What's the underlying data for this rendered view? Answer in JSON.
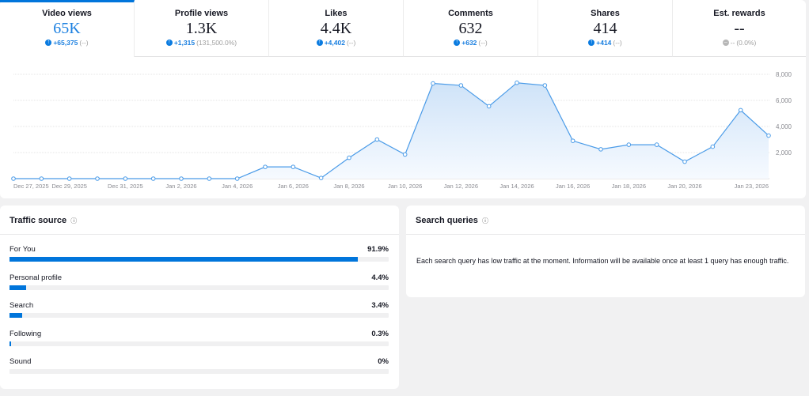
{
  "metrics": [
    {
      "label": "Video views",
      "value": "65K",
      "change": "+65,375",
      "pct": "(--)",
      "dir": "up"
    },
    {
      "label": "Profile views",
      "value": "1.3K",
      "change": "+1,315",
      "pct": "(131,500.0%)",
      "dir": "up"
    },
    {
      "label": "Likes",
      "value": "4.4K",
      "change": "+4,402",
      "pct": "(--)",
      "dir": "up"
    },
    {
      "label": "Comments",
      "value": "632",
      "change": "+632",
      "pct": "(--)",
      "dir": "up"
    },
    {
      "label": "Shares",
      "value": "414",
      "change": "+414",
      "pct": "(--)",
      "dir": "up"
    },
    {
      "label": "Est. rewards",
      "value": "--",
      "change": "--",
      "pct": "(0.0%)",
      "dir": "neutral"
    }
  ],
  "chart_data": {
    "type": "area",
    "dates": [
      "Dec 27, 2025",
      "Dec 28, 2025",
      "Dec 29, 2025",
      "Dec 30, 2025",
      "Dec 31, 2025",
      "Jan 1, 2026",
      "Jan 2, 2026",
      "Jan 3, 2026",
      "Jan 4, 2026",
      "Jan 5, 2026",
      "Jan 6, 2026",
      "Jan 7, 2026",
      "Jan 8, 2026",
      "Jan 9, 2026",
      "Jan 10, 2026",
      "Jan 11, 2026",
      "Jan 12, 2026",
      "Jan 13, 2026",
      "Jan 14, 2026",
      "Jan 15, 2026",
      "Jan 16, 2026",
      "Jan 17, 2026",
      "Jan 18, 2026",
      "Jan 19, 2026",
      "Jan 20, 2026",
      "Jan 21, 2026",
      "Jan 22, 2026",
      "Jan 23, 2026"
    ],
    "values": [
      0,
      0,
      0,
      0,
      0,
      0,
      0,
      0,
      0,
      900,
      900,
      50,
      1600,
      3000,
      1850,
      7300,
      7150,
      5550,
      7350,
      7150,
      2900,
      2250,
      2600,
      2600,
      1300,
      2450,
      5250,
      3300
    ],
    "x_tick_labels": [
      "Dec 27, 2025",
      "Dec 29, 2025",
      "Dec 31, 2025",
      "Jan 2, 2026",
      "Jan 4, 2026",
      "Jan 6, 2026",
      "Jan 8, 2026",
      "Jan 10, 2026",
      "Jan 12, 2026",
      "Jan 14, 2026",
      "Jan 16, 2026",
      "Jan 18, 2026",
      "Jan 20, 2026",
      "Jan 23, 2026"
    ],
    "x_tick_index": [
      0,
      2,
      4,
      6,
      8,
      10,
      12,
      14,
      16,
      18,
      20,
      22,
      24,
      27
    ],
    "y_ticks": [
      2000,
      4000,
      6000,
      8000
    ],
    "y_tick_labels": [
      "2,000",
      "4,000",
      "6,000",
      "8,000"
    ],
    "ylim": [
      0,
      8000
    ],
    "grid": true,
    "y_axis_side": "right",
    "color": "#4a9be8"
  },
  "traffic": {
    "title": "Traffic source",
    "items": [
      {
        "label": "For You",
        "value": "91.9%",
        "pct": 91.9
      },
      {
        "label": "Personal profile",
        "value": "4.4%",
        "pct": 4.4
      },
      {
        "label": "Search",
        "value": "3.4%",
        "pct": 3.4
      },
      {
        "label": "Following",
        "value": "0.3%",
        "pct": 0.3
      },
      {
        "label": "Sound",
        "value": "0%",
        "pct": 0
      }
    ]
  },
  "search": {
    "title": "Search queries",
    "message": "Each search query has low traffic at the moment. Information will be available once at least 1 query has enough traffic."
  },
  "info_icon": "ⓘ"
}
